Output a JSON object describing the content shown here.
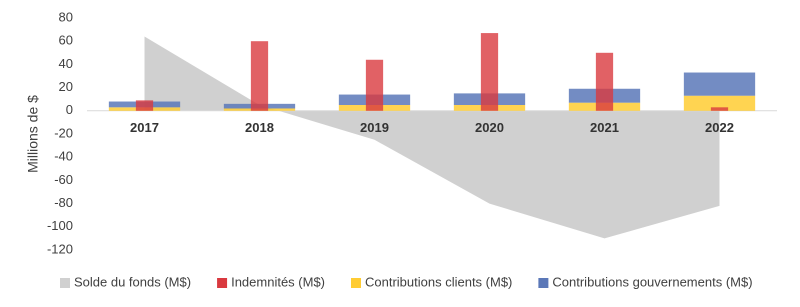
{
  "chart_data": {
    "type": "combo",
    "y_label": "Millions de $",
    "categories": [
      "2017",
      "2018",
      "2019",
      "2020",
      "2021",
      "2022"
    ],
    "ylim": [
      -120,
      80
    ],
    "yticks": [
      -120,
      -100,
      -80,
      -60,
      -40,
      -20,
      0,
      20,
      40,
      60,
      80
    ],
    "grid": false,
    "legend": "bottom",
    "series": [
      {
        "name": "Solde du fonds (M$)",
        "type": "area",
        "color": "#d0d0d0",
        "values": [
          64,
          5,
          -25,
          -80,
          -110,
          -82
        ]
      },
      {
        "name": "Indemnités (M$)",
        "type": "bar",
        "color": "#d9393f",
        "values": [
          9,
          60,
          44,
          67,
          50,
          3
        ]
      },
      {
        "name": "Contributions clients (M$)",
        "type": "bar",
        "stacked": true,
        "color": "#ffcc33",
        "values": [
          3,
          2,
          5,
          5,
          7,
          13
        ]
      },
      {
        "name": "Contributions gouvernements (M$)",
        "type": "bar",
        "stacked": true,
        "color": "#5b78b8",
        "values": [
          5,
          4,
          9,
          10,
          12,
          20
        ]
      }
    ]
  }
}
